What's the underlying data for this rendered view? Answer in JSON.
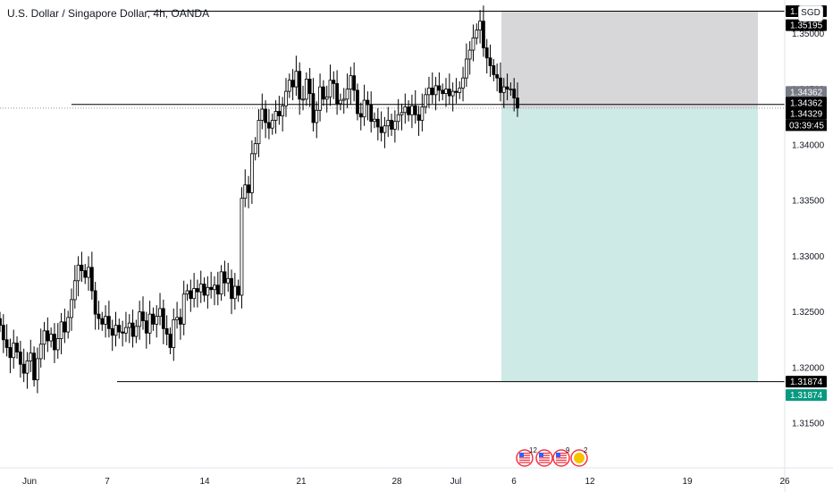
{
  "header": {
    "title": "U.S. Dollar / Singapore Dollar, 4h, OANDA",
    "currency": "SGD"
  },
  "colors": {
    "candle_up": "#ffffff",
    "candle_down": "#000000",
    "stop_zone": "#d7d7d9",
    "target_zone": "#cdeae6",
    "target_tag": "#089981",
    "level_tag": "#000000",
    "entry_tag_gray": "#787b86"
  },
  "chart_data": {
    "type": "candlestick",
    "title": "U.S. Dollar / Singapore Dollar, 4h, OANDA",
    "interval": "4h",
    "source": "OANDA",
    "ylim": [
      1.311,
      1.353
    ],
    "yticks": [
      1.315,
      1.32,
      1.325,
      1.33,
      1.335,
      1.34,
      1.345,
      1.35
    ],
    "ytick_labels": [
      "1.31500",
      "1.32000",
      "1.32500",
      "1.33000",
      "1.33500",
      "1.34000",
      "1.34500",
      "1.35000"
    ],
    "xticks": [
      "Jun",
      "7",
      "14",
      "21",
      "28",
      "Jul",
      "6",
      "12",
      "19",
      "26"
    ],
    "closes": [
      1.3238,
      1.3225,
      1.3218,
      1.3209,
      1.3222,
      1.3214,
      1.3203,
      1.3195,
      1.3206,
      1.3213,
      1.3189,
      1.3208,
      1.3221,
      1.3233,
      1.3224,
      1.323,
      1.3216,
      1.3226,
      1.3241,
      1.3232,
      1.3245,
      1.3261,
      1.3278,
      1.3292,
      1.3287,
      1.3281,
      1.329,
      1.3269,
      1.3248,
      1.3244,
      1.3239,
      1.3246,
      1.3235,
      1.3229,
      1.3238,
      1.3232,
      1.3231,
      1.3236,
      1.324,
      1.3228,
      1.3237,
      1.325,
      1.3242,
      1.3231,
      1.3248,
      1.3239,
      1.3246,
      1.3253,
      1.3235,
      1.323,
      1.3218,
      1.3243,
      1.3245,
      1.3239,
      1.3266,
      1.3269,
      1.3262,
      1.3271,
      1.3268,
      1.3275,
      1.3265,
      1.3272,
      1.327,
      1.3274,
      1.3266,
      1.3286,
      1.3276,
      1.328,
      1.3262,
      1.3273,
      1.3265,
      1.3352,
      1.3364,
      1.3357,
      1.3392,
      1.3401,
      1.3422,
      1.3432,
      1.342,
      1.3415,
      1.3422,
      1.343,
      1.3426,
      1.3435,
      1.3448,
      1.3458,
      1.3452,
      1.3466,
      1.3441,
      1.3441,
      1.3459,
      1.3446,
      1.342,
      1.3431,
      1.3452,
      1.3441,
      1.3443,
      1.3458,
      1.3455,
      1.3437,
      1.344,
      1.3441,
      1.345,
      1.3462,
      1.3449,
      1.3428,
      1.3425,
      1.344,
      1.3436,
      1.3421,
      1.3423,
      1.3416,
      1.3411,
      1.3417,
      1.3422,
      1.3414,
      1.3421,
      1.3427,
      1.3429,
      1.3434,
      1.3427,
      1.3435,
      1.3427,
      1.3422,
      1.3434,
      1.3445,
      1.3451,
      1.3445,
      1.3453,
      1.3449,
      1.3446,
      1.345,
      1.3444,
      1.3448,
      1.3447,
      1.3451,
      1.346,
      1.3477,
      1.3485,
      1.3496,
      1.3503,
      1.3511,
      1.3487,
      1.3478,
      1.3471,
      1.3463,
      1.346,
      1.3447,
      1.3452,
      1.345,
      1.345,
      1.3442,
      1.3433
    ],
    "zoom_drawings": {
      "stop_top": 1.352,
      "stop_line": 1.35195,
      "entry_gray": 1.34362,
      "entry_black": 1.34362,
      "current": 1.34329,
      "target": 1.31874
    },
    "price_labels": [
      {
        "key": "p1",
        "text": "1.35200",
        "price": 1.352,
        "kind": "level"
      },
      {
        "key": "p2",
        "text": "1.35195",
        "price": 1.35195,
        "kind": "level_offset"
      },
      {
        "key": "p3",
        "text": "1.34362",
        "price": 1.34362,
        "kind": "gray"
      },
      {
        "key": "p4",
        "text": "1.34362",
        "price": 1.34362,
        "kind": "level_offset"
      },
      {
        "key": "p5",
        "text": "1.34329",
        "price": 1.34329,
        "kind": "current"
      },
      {
        "key": "p6",
        "text": "1.31874",
        "price": 1.31874,
        "kind": "level"
      },
      {
        "key": "p7",
        "text": "1.31874",
        "price": 1.31874,
        "kind": "target_offset"
      }
    ],
    "countdown": "03:39:45",
    "events": [
      {
        "flag": "US",
        "count": "12"
      },
      {
        "flag": "US",
        "count": ""
      },
      {
        "flag": "US",
        "count": "9"
      },
      {
        "flag": "EU",
        "count": "2"
      }
    ]
  }
}
